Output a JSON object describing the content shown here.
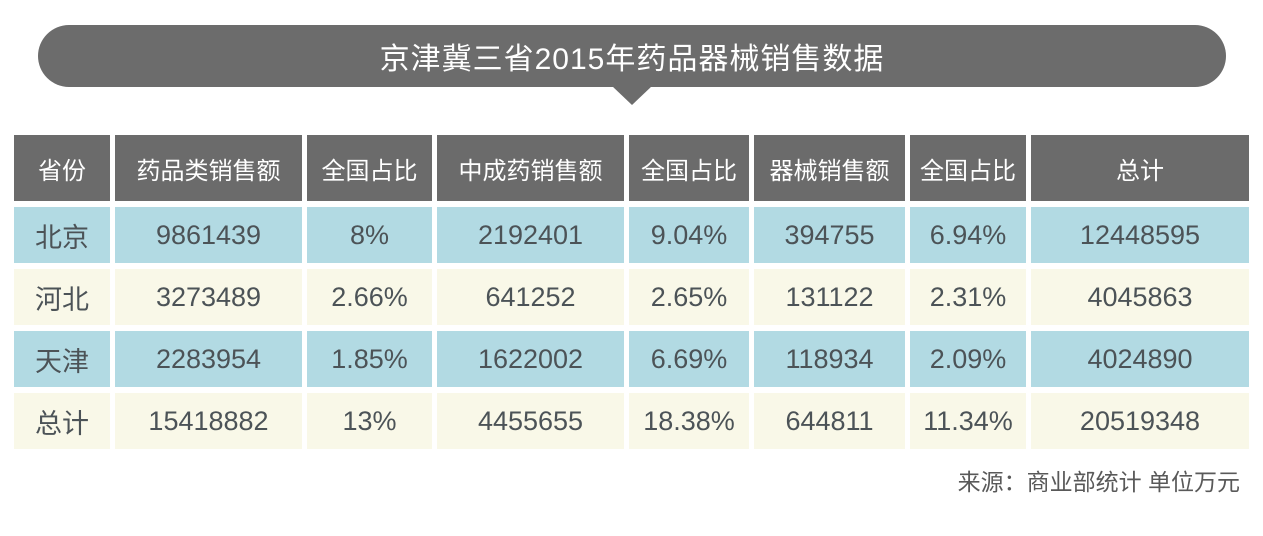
{
  "title": "京津冀三省2015年药品器械销售数据",
  "source_note": "来源：商业部统计 单位万元",
  "colors": {
    "banner_bg": "#6c6c6c",
    "header_bg": "#6b6b6b",
    "row_blue": "#b2dae3",
    "row_cream": "#f9f8e8",
    "cell_text": "#4c5357",
    "header_text": "#ffffff",
    "source_text": "#595959"
  },
  "chart_data": {
    "type": "table",
    "title": "京津冀三省2015年药品器械销售数据",
    "columns": [
      "省份",
      "药品类销售额",
      "全国占比",
      "中成药销售额",
      "全国占比",
      "器械销售额",
      "全国占比",
      "总计"
    ],
    "rows": [
      [
        "北京",
        "9861439",
        "8%",
        "2192401",
        "9.04%",
        "394755",
        "6.94%",
        "12448595"
      ],
      [
        "河北",
        "3273489",
        "2.66%",
        "641252",
        "2.65%",
        "131122",
        "2.31%",
        "4045863"
      ],
      [
        "天津",
        "2283954",
        "1.85%",
        "1622002",
        "6.69%",
        "118934",
        "2.09%",
        "4024890"
      ],
      [
        "总计",
        "15418882",
        "13%",
        "4455655",
        "18.38%",
        "644811",
        "11.34%",
        "20519348"
      ]
    ],
    "row_styles": [
      "blue",
      "cream",
      "blue",
      "cream"
    ],
    "source": "来源：商业部统计 单位万元",
    "unit": "万元",
    "layout": {
      "header_bg": "#6b6b6b",
      "alt_row_colors": [
        "#b2dae3",
        "#f9f8e8"
      ],
      "grid": "white-gaps"
    }
  }
}
